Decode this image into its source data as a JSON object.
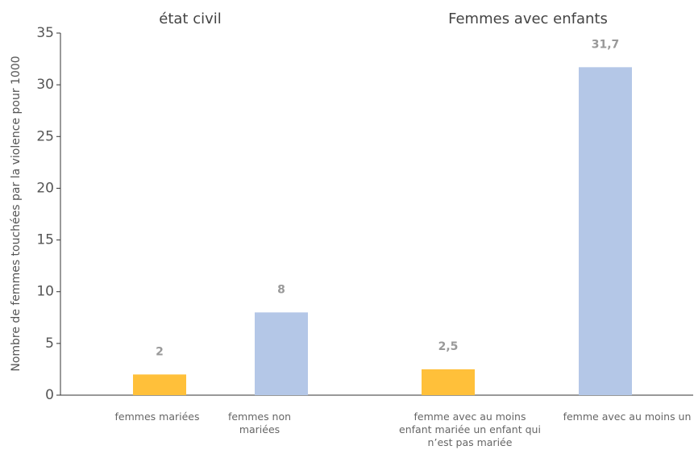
{
  "chart_data": {
    "type": "bar",
    "y_label": "Nombre de femmes touchées par la violence pour 1000",
    "annotations": [
      "état civil",
      "Femmes avec enfants"
    ],
    "categories": [
      "femmes mariées",
      "femmes non\nmariées",
      "femme avec au moins\nenfant mariée un enfant qui\nn’est pas mariée",
      "femme avec au moins un"
    ],
    "values": [
      2,
      8,
      2.5,
      31.7
    ],
    "value_labels": [
      "2",
      "8",
      "2,5",
      "31,7"
    ],
    "colors": [
      "#ffc03a",
      "#b4c7e7",
      "#ffc03a",
      "#b4c7e7"
    ],
    "ylim": [
      0,
      35
    ],
    "yticks": [
      0,
      5,
      10,
      15,
      20,
      25,
      30,
      35
    ]
  }
}
